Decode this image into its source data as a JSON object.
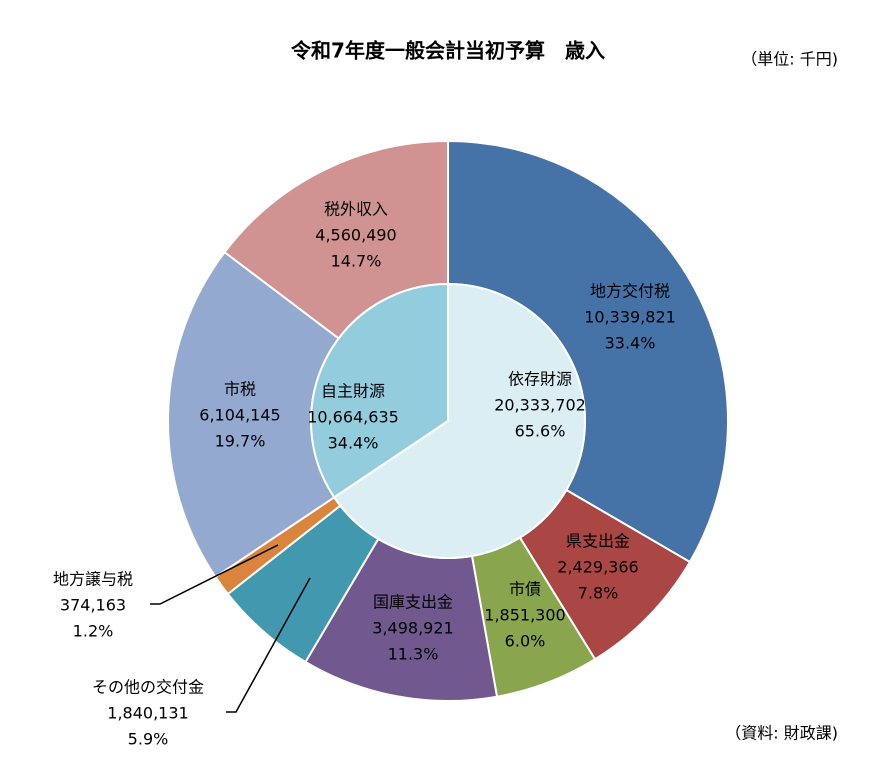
{
  "chart_data": {
    "type": "nested-donut",
    "title": "令和7年度一般会計当初予算　歳入",
    "unit_note": "（単位: 千円)",
    "source_note": "（資料: 財政課)",
    "outer": {
      "categories": [
        "地方交付税",
        "県支出金",
        "市債",
        "国庫支出金",
        "その他の交付金",
        "地方譲与税",
        "市税",
        "税外収入"
      ],
      "values": [
        10339821,
        2429366,
        1851300,
        3498921,
        1840131,
        374163,
        6104145,
        4560490
      ],
      "value_labels": [
        "10,339,821",
        "2,429,366",
        "1,851,300",
        "3,498,921",
        "1,840,131",
        "374,163",
        "6,104,145",
        "4,560,490"
      ],
      "percents": [
        33.4,
        7.8,
        6.0,
        11.3,
        5.9,
        1.2,
        19.7,
        14.7
      ],
      "percent_labels": [
        "33.4%",
        "7.8%",
        "6.0%",
        "11.3%",
        "5.9%",
        "1.2%",
        "19.7%",
        "14.7%"
      ],
      "colors": [
        "#4572a7",
        "#aa4643",
        "#89a54e",
        "#71588f",
        "#4198af",
        "#db843d",
        "#93a9cf",
        "#d19392"
      ]
    },
    "inner": {
      "categories": [
        "依存財源",
        "自主財源"
      ],
      "values": [
        20333702,
        10664635
      ],
      "value_labels": [
        "20,333,702",
        "10,664,635"
      ],
      "percents": [
        65.6,
        34.4
      ],
      "percent_labels": [
        "65.6%",
        "34.4%"
      ],
      "colors": [
        "#dbeef4",
        "#93cddd"
      ]
    }
  }
}
